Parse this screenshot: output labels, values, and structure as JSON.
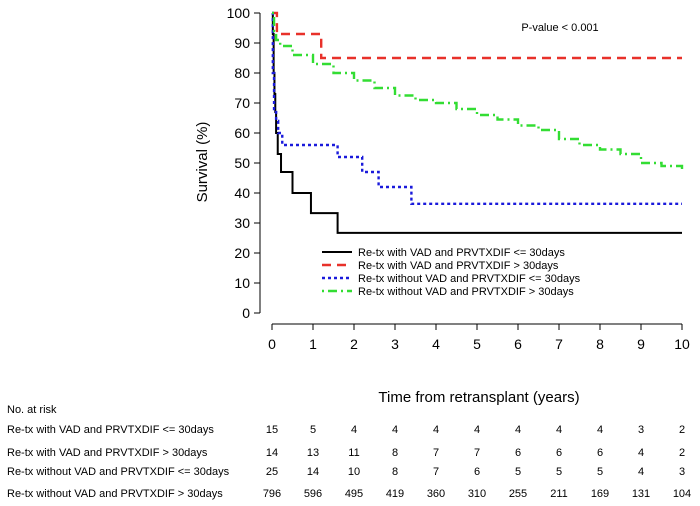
{
  "chart_data": {
    "type": "line",
    "subtype": "kaplan-meier step",
    "xlabel": "Time from retransplant (years)",
    "ylabel": "Survival (%)",
    "xlim": [
      0,
      10
    ],
    "ylim": [
      0,
      100
    ],
    "x_ticks": [
      "0",
      "1",
      "2",
      "3",
      "4",
      "5",
      "6",
      "7",
      "8",
      "9",
      "10"
    ],
    "y_ticks": [
      "0",
      "10",
      "20",
      "30",
      "40",
      "50",
      "60",
      "70",
      "80",
      "90",
      "100"
    ],
    "grid": false,
    "legend_position": "center-right",
    "annotation": "P-value < 0.001",
    "series": [
      {
        "name": "Re-tx with VAD and PRVTXDIF <= 30days",
        "color": "#000000",
        "dash": "solid",
        "x": [
          0,
          0.02,
          0.04,
          0.06,
          0.08,
          0.1,
          0.14,
          0.22,
          0.5,
          0.95,
          1.6,
          10
        ],
        "y": [
          100,
          93,
          80,
          73,
          67,
          60,
          53,
          47,
          40,
          33.3,
          26.7,
          26.7
        ]
      },
      {
        "name": "Re-tx with VAD and PRVTXDIF > 30days",
        "color": "#e8312a",
        "dash": "dashed",
        "x": [
          0,
          0.12,
          1.2,
          10
        ],
        "y": [
          100,
          93,
          85,
          85
        ]
      },
      {
        "name": "Re-tx without VAD and PRVTXDIF <= 30days",
        "color": "#1a1adb",
        "dash": "dotted",
        "x": [
          0,
          0.02,
          0.05,
          0.1,
          0.15,
          0.25,
          1.6,
          2.2,
          2.6,
          3.4,
          10
        ],
        "y": [
          100,
          80,
          68,
          64,
          60,
          56,
          52,
          47,
          42,
          36.4,
          36.4
        ]
      },
      {
        "name": "Re-tx without VAD and PRVTXDIF > 30days",
        "color": "#33dd33",
        "dash": "dot-dash",
        "x": [
          0,
          0.05,
          0.1,
          0.2,
          0.5,
          1,
          1.5,
          2,
          2.5,
          3,
          3.5,
          4,
          4.5,
          5,
          5.5,
          6,
          6.5,
          7,
          7.5,
          8,
          8.5,
          9,
          9.5,
          10
        ],
        "y": [
          100,
          94,
          91,
          89,
          86,
          83,
          80,
          77.5,
          75,
          72.5,
          71,
          70,
          68,
          66,
          64.5,
          62.5,
          61,
          58,
          56,
          54.5,
          53,
          50,
          49,
          47.5
        ]
      }
    ],
    "risk_table": {
      "title": "No. at risk",
      "times": [
        0,
        1,
        2,
        3,
        4,
        5,
        6,
        7,
        8,
        9,
        10
      ],
      "rows": [
        {
          "label": "Re-tx with VAD and PRVTXDIF <= 30days",
          "values": [
            "15",
            "5",
            "4",
            "4",
            "4",
            "4",
            "4",
            "4",
            "4",
            "3",
            "2"
          ]
        },
        {
          "label": "Re-tx with VAD and PRVTXDIF > 30days",
          "values": [
            "14",
            "13",
            "11",
            "8",
            "7",
            "7",
            "6",
            "6",
            "6",
            "4",
            "2"
          ]
        },
        {
          "label": "Re-tx without VAD and PRVTXDIF <= 30days",
          "values": [
            "25",
            "14",
            "10",
            "8",
            "7",
            "6",
            "5",
            "5",
            "5",
            "4",
            "3"
          ]
        },
        {
          "label": "Re-tx without VAD and PRVTXDIF > 30days",
          "values": [
            "796",
            "596",
            "495",
            "419",
            "360",
            "310",
            "255",
            "211",
            "169",
            "131",
            "104"
          ]
        }
      ]
    }
  }
}
